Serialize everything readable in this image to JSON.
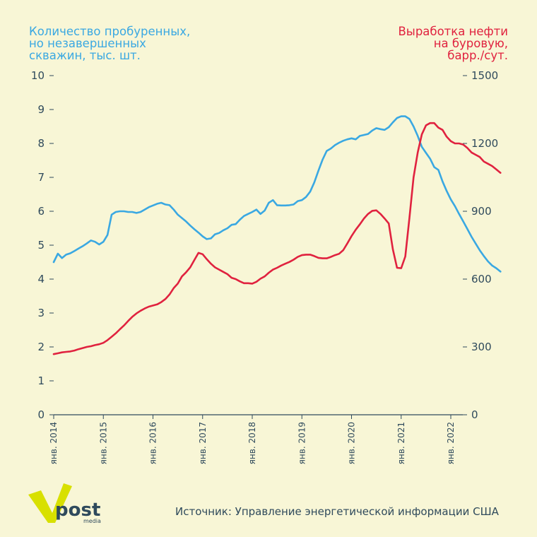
{
  "left_title": [
    "Количество пробуренных,",
    "но незавершенных",
    "скважин, тыс. шт."
  ],
  "right_title": [
    "Выработка нефти",
    "на буровую,",
    "барр./сут."
  ],
  "source": "Источник: Управление энергетической информации США",
  "logo": {
    "text": "post",
    "sub": "media"
  },
  "colors": {
    "background": "#f8f6d6",
    "left_series": "#3aa8e2",
    "right_series": "#e0223f",
    "axis": "#2f4a5c",
    "logo_accent": "#d8e000"
  },
  "chart_data": {
    "type": "line",
    "title": "",
    "x_start": 2014.0,
    "x_end": 2022.25,
    "x_step": "month",
    "x_ticks": [
      {
        "x": 2014,
        "label": "янв. 2014"
      },
      {
        "x": 2015,
        "label": "янв. 2015"
      },
      {
        "x": 2016,
        "label": "янв. 2016"
      },
      {
        "x": 2017,
        "label": "янв. 2017"
      },
      {
        "x": 2018,
        "label": "янв. 2018"
      },
      {
        "x": 2019,
        "label": "янв. 2019"
      },
      {
        "x": 2020,
        "label": "янв. 2020"
      },
      {
        "x": 2021,
        "label": "янв. 2021"
      },
      {
        "x": 2022,
        "label": "янв. 2022"
      }
    ],
    "y_left": {
      "label": "Количество пробуренных, но незавершенных скважин, тыс. шт.",
      "range": [
        0,
        10
      ],
      "ticks": [
        "0",
        "1",
        "2",
        "3",
        "4",
        "5",
        "6",
        "7",
        "8",
        "9",
        "10"
      ]
    },
    "y_right": {
      "label": "Выработка нефти на буровую, барр./сут.",
      "range": [
        0,
        1500
      ],
      "ticks": [
        "0",
        "300",
        "600",
        "900",
        "1200",
        "1500"
      ]
    },
    "series": [
      {
        "name": "Количество пробуренных, но незавершенных скважин, тыс. шт.",
        "axis": "left",
        "values": [
          4.5,
          4.75,
          4.62,
          4.72,
          4.76,
          4.83,
          4.9,
          4.97,
          5.05,
          5.14,
          5.1,
          5.02,
          5.1,
          5.3,
          5.9,
          5.98,
          6.0,
          6.0,
          5.98,
          5.98,
          5.95,
          5.98,
          6.05,
          6.12,
          6.17,
          6.22,
          6.25,
          6.2,
          6.18,
          6.05,
          5.9,
          5.8,
          5.7,
          5.58,
          5.47,
          5.37,
          5.26,
          5.18,
          5.2,
          5.32,
          5.36,
          5.44,
          5.5,
          5.6,
          5.62,
          5.75,
          5.86,
          5.92,
          5.98,
          6.05,
          5.92,
          6.02,
          6.25,
          6.33,
          6.18,
          6.17,
          6.17,
          6.18,
          6.2,
          6.3,
          6.33,
          6.42,
          6.58,
          6.85,
          7.2,
          7.52,
          7.78,
          7.85,
          7.95,
          8.02,
          8.08,
          8.12,
          8.15,
          8.12,
          8.22,
          8.25,
          8.28,
          8.38,
          8.45,
          8.42,
          8.4,
          8.48,
          8.62,
          8.75,
          8.8,
          8.8,
          8.72,
          8.5,
          8.22,
          7.9,
          7.72,
          7.55,
          7.3,
          7.22,
          6.88,
          6.6,
          6.35,
          6.15,
          5.92,
          5.7,
          5.48,
          5.25,
          5.05,
          4.85,
          4.68,
          4.52,
          4.4,
          4.32,
          4.22
        ]
      },
      {
        "name": "Выработка нефти на буровую, барр./сут.",
        "axis": "right",
        "values": [
          268,
          272,
          276,
          278,
          280,
          284,
          290,
          295,
          300,
          303,
          308,
          312,
          318,
          330,
          345,
          360,
          378,
          395,
          415,
          433,
          448,
          460,
          470,
          478,
          483,
          488,
          498,
          512,
          532,
          560,
          580,
          612,
          630,
          652,
          684,
          716,
          710,
          688,
          668,
          652,
          642,
          632,
          622,
          606,
          600,
          590,
          582,
          582,
          580,
          588,
          602,
          612,
          628,
          642,
          650,
          660,
          668,
          676,
          686,
          698,
          706,
          708,
          708,
          702,
          694,
          692,
          692,
          698,
          706,
          712,
          728,
          758,
          790,
          818,
          842,
          868,
          888,
          902,
          904,
          888,
          868,
          846,
          732,
          650,
          648,
          700,
          872,
          1050,
          1160,
          1240,
          1280,
          1290,
          1290,
          1270,
          1260,
          1230,
          1210,
          1200,
          1200,
          1195,
          1180,
          1160,
          1150,
          1140,
          1120,
          1110,
          1100,
          1085,
          1070
        ]
      }
    ]
  }
}
